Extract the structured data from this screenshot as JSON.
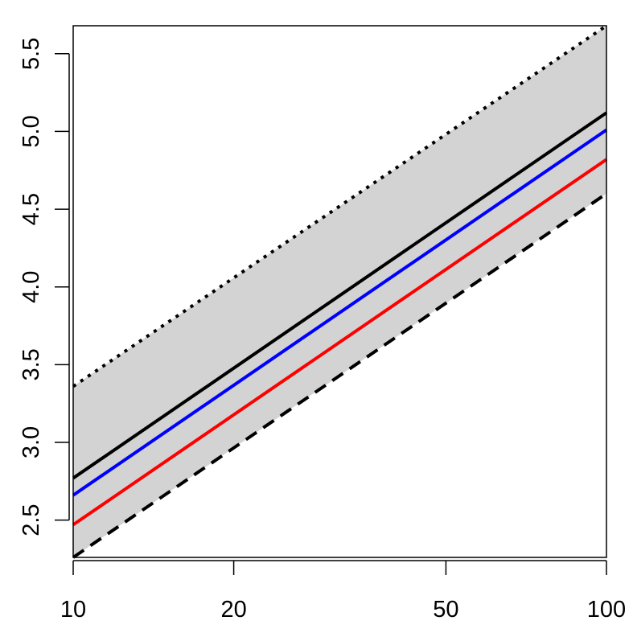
{
  "chart_data": {
    "type": "line",
    "x_scale": "log",
    "xlim": [
      10,
      100
    ],
    "ylim": [
      2.26,
      5.68
    ],
    "x_ticks": [
      10,
      20,
      50,
      100
    ],
    "x_tick_labels": [
      "10",
      "20",
      "50",
      "100"
    ],
    "y_ticks": [
      2.5,
      3.0,
      3.5,
      4.0,
      4.5,
      5.0,
      5.5
    ],
    "y_tick_labels": [
      "2.5",
      "3.0",
      "3.5",
      "4.0",
      "4.5",
      "5.0",
      "5.5"
    ],
    "band": {
      "fill": "#d3d3d3",
      "x": [
        10,
        100
      ],
      "upper": [
        3.36,
        5.68
      ],
      "lower": [
        2.26,
        4.6
      ]
    },
    "series": [
      {
        "x": [
          10,
          100
        ],
        "values": [
          3.36,
          5.68
        ],
        "color": "#000000",
        "dash": "dotted"
      },
      {
        "x": [
          10,
          100
        ],
        "values": [
          2.26,
          4.6
        ],
        "color": "#000000",
        "dash": "dashed"
      },
      {
        "x": [
          10,
          100
        ],
        "values": [
          2.77,
          5.12
        ],
        "color": "#000000",
        "dash": "solid"
      },
      {
        "x": [
          10,
          100
        ],
        "values": [
          2.66,
          5.01
        ],
        "color": "#0000ff",
        "dash": "solid"
      },
      {
        "x": [
          10,
          100
        ],
        "values": [
          2.47,
          4.82
        ],
        "color": "#ff0000",
        "dash": "solid"
      }
    ],
    "grid": false,
    "legend": "none"
  }
}
